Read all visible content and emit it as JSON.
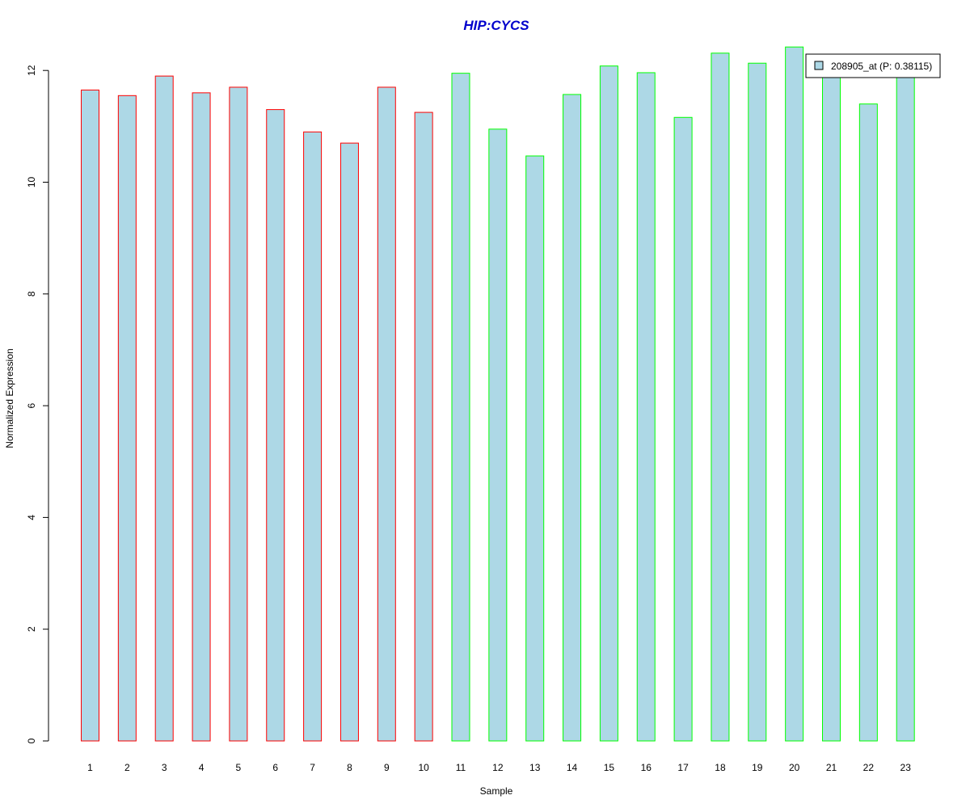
{
  "chart_data": {
    "type": "bar",
    "title": "HIP:CYCS",
    "xlabel": "Sample",
    "ylabel": "Normalized Expression",
    "categories": [
      "1",
      "2",
      "3",
      "4",
      "5",
      "6",
      "7",
      "8",
      "9",
      "10",
      "11",
      "12",
      "13",
      "14",
      "15",
      "16",
      "17",
      "18",
      "19",
      "20",
      "21",
      "22",
      "23"
    ],
    "series": [
      {
        "name": "208905_at (P: 0.38115)",
        "values": [
          11.65,
          11.55,
          11.9,
          11.6,
          11.7,
          11.3,
          10.9,
          10.7,
          11.7,
          11.25,
          11.95,
          10.95,
          10.47,
          11.57,
          12.08,
          11.96,
          11.16,
          12.31,
          12.13,
          12.42,
          11.9,
          11.4,
          11.93
        ]
      }
    ],
    "group_border_colors": [
      "red",
      "red",
      "red",
      "red",
      "red",
      "red",
      "red",
      "red",
      "red",
      "red",
      "green",
      "green",
      "green",
      "green",
      "green",
      "green",
      "green",
      "green",
      "green",
      "green",
      "green",
      "green",
      "green"
    ],
    "ylim": [
      0,
      12.6
    ],
    "yticks": [
      0,
      2,
      4,
      6,
      8,
      10,
      12
    ],
    "grid": false,
    "legend_position": "top-right"
  },
  "colors": {
    "bar_fill": "#add8e6",
    "group_red": "#ff0000",
    "group_green": "#00ff00",
    "title": "#0000cc",
    "axis": "#000000"
  }
}
